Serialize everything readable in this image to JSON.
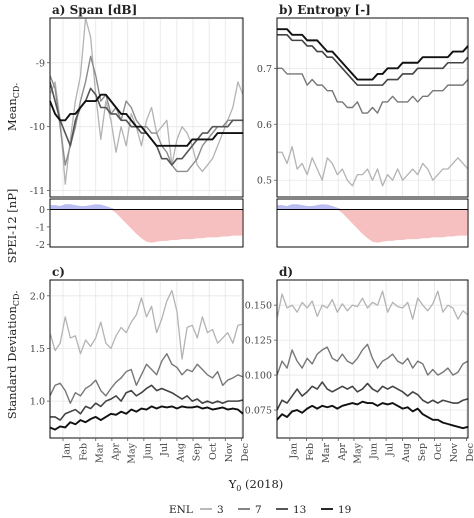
{
  "chart_data": [
    {
      "id": "a",
      "type": "line",
      "title": "a) Span [dB]",
      "ylim": [
        -11.1,
        -8.3
      ],
      "yticks": [
        -11,
        -10,
        -9
      ],
      "ytick_labels": [
        "-11",
        "-10",
        "-9"
      ],
      "grid": true,
      "series": [
        {
          "name": "3",
          "color": "#b3b3b3",
          "width": 1.3,
          "values": [
            -9.5,
            -9.3,
            -9.9,
            -10.9,
            -10.2,
            -9.6,
            -9.2,
            -8.3,
            -8.6,
            -9.5,
            -10.2,
            -9.6,
            -9.9,
            -10.4,
            -10.0,
            -10.3,
            -9.8,
            -10.0,
            -10.3,
            -9.9,
            -9.7,
            -10.1,
            -10.0,
            -9.9,
            -10.6,
            -10.2,
            -10.0,
            -10.1,
            -10.3,
            -10.6,
            -10.7,
            -10.6,
            -10.5,
            -10.3,
            -10.1,
            -9.9,
            -9.7,
            -9.3,
            -9.5
          ]
        },
        {
          "name": "7",
          "color": "#8c8c8c",
          "width": 1.4,
          "values": [
            -9.2,
            -9.4,
            -10.0,
            -10.6,
            -10.3,
            -10.0,
            -9.6,
            -9.3,
            -8.9,
            -9.2,
            -9.6,
            -9.5,
            -9.8,
            -9.7,
            -9.9,
            -9.6,
            -9.7,
            -9.9,
            -10.0,
            -10.0,
            -10.1,
            -10.1,
            -10.3,
            -10.4,
            -10.6,
            -10.7,
            -10.7,
            -10.7,
            -10.6,
            -10.5,
            -10.3,
            -10.2,
            -10.1,
            -10.0,
            -10.0,
            -9.9,
            -9.9,
            -9.9,
            -9.9
          ]
        },
        {
          "name": "13",
          "color": "#555555",
          "width": 1.6,
          "values": [
            -9.3,
            -9.6,
            -9.9,
            -10.1,
            -10.3,
            -9.9,
            -9.7,
            -9.6,
            -9.4,
            -9.5,
            -9.7,
            -9.7,
            -9.8,
            -9.8,
            -9.9,
            -9.9,
            -10.0,
            -10.0,
            -10.1,
            -10.1,
            -10.2,
            -10.3,
            -10.5,
            -10.5,
            -10.6,
            -10.5,
            -10.5,
            -10.4,
            -10.3,
            -10.2,
            -10.1,
            -10.1,
            -10.0,
            -10.0,
            -10.0,
            -10.0,
            -9.9,
            -9.9,
            -9.9
          ]
        },
        {
          "name": "19",
          "color": "#111111",
          "width": 1.9,
          "values": [
            -9.6,
            -9.8,
            -9.9,
            -9.9,
            -9.8,
            -9.8,
            -9.7,
            -9.6,
            -9.6,
            -9.6,
            -9.5,
            -9.5,
            -9.6,
            -9.7,
            -9.8,
            -9.8,
            -9.9,
            -10.0,
            -10.0,
            -10.1,
            -10.2,
            -10.3,
            -10.3,
            -10.3,
            -10.3,
            -10.3,
            -10.3,
            -10.3,
            -10.2,
            -10.2,
            -10.2,
            -10.2,
            -10.2,
            -10.1,
            -10.1,
            -10.1,
            -10.1,
            -10.1,
            -10.1
          ]
        }
      ]
    },
    {
      "id": "b",
      "type": "line",
      "title": "b) Entropy [-]",
      "ylim": [
        0.47,
        0.79
      ],
      "yticks": [
        0.5,
        0.6,
        0.7
      ],
      "ytick_labels": [
        "0.5",
        "0.6",
        "0.7"
      ],
      "grid": true,
      "series": [
        {
          "name": "3",
          "color": "#b3b3b3",
          "width": 1.3,
          "values": [
            0.55,
            0.55,
            0.53,
            0.56,
            0.52,
            0.53,
            0.51,
            0.54,
            0.52,
            0.5,
            0.54,
            0.53,
            0.51,
            0.52,
            0.5,
            0.49,
            0.51,
            0.51,
            0.52,
            0.5,
            0.52,
            0.49,
            0.51,
            0.5,
            0.52,
            0.5,
            0.51,
            0.52,
            0.51,
            0.53,
            0.52,
            0.5,
            0.51,
            0.52,
            0.52,
            0.53,
            0.54,
            0.53,
            0.52
          ]
        },
        {
          "name": "7",
          "color": "#777777",
          "width": 1.4,
          "values": [
            0.7,
            0.7,
            0.69,
            0.69,
            0.69,
            0.69,
            0.67,
            0.68,
            0.67,
            0.67,
            0.66,
            0.66,
            0.64,
            0.64,
            0.63,
            0.63,
            0.64,
            0.62,
            0.62,
            0.63,
            0.62,
            0.64,
            0.64,
            0.65,
            0.64,
            0.64,
            0.64,
            0.65,
            0.64,
            0.65,
            0.65,
            0.66,
            0.66,
            0.66,
            0.67,
            0.67,
            0.67,
            0.67,
            0.68
          ]
        },
        {
          "name": "13",
          "color": "#444444",
          "width": 1.6,
          "values": [
            0.76,
            0.76,
            0.76,
            0.75,
            0.75,
            0.75,
            0.74,
            0.74,
            0.73,
            0.73,
            0.72,
            0.72,
            0.71,
            0.7,
            0.69,
            0.68,
            0.67,
            0.67,
            0.67,
            0.67,
            0.67,
            0.67,
            0.68,
            0.68,
            0.68,
            0.69,
            0.69,
            0.69,
            0.7,
            0.7,
            0.7,
            0.7,
            0.7,
            0.7,
            0.71,
            0.71,
            0.71,
            0.71,
            0.72
          ]
        },
        {
          "name": "19",
          "color": "#111111",
          "width": 1.9,
          "values": [
            0.77,
            0.77,
            0.77,
            0.76,
            0.76,
            0.76,
            0.75,
            0.75,
            0.75,
            0.74,
            0.73,
            0.73,
            0.72,
            0.71,
            0.7,
            0.69,
            0.68,
            0.68,
            0.68,
            0.68,
            0.69,
            0.69,
            0.7,
            0.7,
            0.7,
            0.71,
            0.71,
            0.71,
            0.71,
            0.72,
            0.72,
            0.72,
            0.72,
            0.72,
            0.72,
            0.73,
            0.73,
            0.73,
            0.74
          ]
        }
      ]
    },
    {
      "id": "spei-a",
      "type": "area",
      "ylabel": "SPEI-12 [nP]",
      "ylim": [
        -2.15,
        0.6
      ],
      "yticks": [
        0,
        -1,
        -2
      ],
      "ytick_labels": [
        "0",
        "-1",
        "-2"
      ],
      "positive_color": "#b8bcf0",
      "negative_color": "#f6c0c0",
      "values": [
        0.25,
        0.25,
        0.2,
        0.3,
        0.3,
        0.25,
        0.2,
        0.2,
        0.25,
        0.3,
        0.28,
        0.2,
        0.1,
        -0.2,
        -0.5,
        -0.8,
        -1.1,
        -1.4,
        -1.65,
        -1.85,
        -1.9,
        -1.85,
        -1.8,
        -1.8,
        -1.75,
        -1.75,
        -1.7,
        -1.7,
        -1.7,
        -1.65,
        -1.65,
        -1.6,
        -1.6,
        -1.6,
        -1.55,
        -1.55,
        -1.5,
        -1.5,
        -1.5
      ]
    },
    {
      "id": "spei-b",
      "type": "area",
      "ylim": [
        -2.15,
        0.6
      ],
      "positive_color": "#b8bcf0",
      "negative_color": "#f6c0c0",
      "values": [
        0.25,
        0.25,
        0.2,
        0.3,
        0.3,
        0.25,
        0.2,
        0.2,
        0.25,
        0.3,
        0.28,
        0.2,
        0.1,
        -0.2,
        -0.5,
        -0.8,
        -1.1,
        -1.4,
        -1.65,
        -1.85,
        -1.9,
        -1.85,
        -1.8,
        -1.8,
        -1.75,
        -1.75,
        -1.7,
        -1.7,
        -1.7,
        -1.65,
        -1.65,
        -1.6,
        -1.6,
        -1.6,
        -1.55,
        -1.55,
        -1.5,
        -1.5,
        -1.5
      ]
    },
    {
      "id": "c",
      "type": "line",
      "title": "c)",
      "ylim": [
        0.65,
        2.15
      ],
      "yticks": [
        1.0,
        1.5,
        2.0
      ],
      "ytick_labels": [
        "1.0",
        "1.5",
        "2.0"
      ],
      "grid": true,
      "series": [
        {
          "name": "3",
          "color": "#b3b3b3",
          "width": 1.3,
          "values": [
            1.65,
            1.48,
            1.55,
            1.8,
            1.6,
            1.62,
            1.45,
            1.58,
            1.52,
            1.6,
            1.75,
            1.55,
            1.5,
            1.62,
            1.7,
            1.65,
            1.75,
            1.82,
            1.98,
            1.8,
            1.9,
            1.65,
            1.78,
            1.95,
            2.05,
            1.85,
            1.4,
            1.7,
            1.72,
            1.6,
            1.8,
            1.65,
            1.68,
            1.55,
            1.6,
            1.65,
            1.55,
            1.72,
            1.73
          ]
        },
        {
          "name": "7",
          "color": "#777777",
          "width": 1.4,
          "values": [
            1.05,
            1.15,
            1.17,
            1.1,
            0.98,
            1.08,
            1.05,
            1.12,
            1.15,
            1.2,
            1.1,
            1.05,
            1.12,
            1.18,
            1.22,
            1.28,
            1.3,
            1.15,
            1.25,
            1.35,
            1.3,
            1.25,
            1.38,
            1.45,
            1.35,
            1.32,
            1.25,
            1.3,
            1.28,
            1.35,
            1.3,
            1.25,
            1.22,
            1.28,
            1.15,
            1.2,
            1.22,
            1.25,
            1.23
          ]
        },
        {
          "name": "13",
          "color": "#444444",
          "width": 1.6,
          "values": [
            0.85,
            0.85,
            0.82,
            0.88,
            0.9,
            0.92,
            0.88,
            0.95,
            0.93,
            0.98,
            0.95,
            1.0,
            1.02,
            1.05,
            1.0,
            1.08,
            1.1,
            1.05,
            1.08,
            1.12,
            1.15,
            1.1,
            1.12,
            1.1,
            1.08,
            1.05,
            1.02,
            1.05,
            1.0,
            1.02,
            0.98,
            1.0,
            0.98,
            1.0,
            0.98,
            1.0,
            1.0,
            1.0,
            1.01
          ]
        },
        {
          "name": "19",
          "color": "#111111",
          "width": 1.9,
          "values": [
            0.75,
            0.73,
            0.76,
            0.75,
            0.8,
            0.78,
            0.82,
            0.8,
            0.83,
            0.85,
            0.82,
            0.85,
            0.88,
            0.87,
            0.9,
            0.88,
            0.92,
            0.9,
            0.93,
            0.92,
            0.95,
            0.93,
            0.95,
            0.94,
            0.95,
            0.93,
            0.95,
            0.94,
            0.94,
            0.95,
            0.93,
            0.94,
            0.92,
            0.93,
            0.94,
            0.92,
            0.93,
            0.92,
            0.88
          ]
        }
      ]
    },
    {
      "id": "d",
      "type": "line",
      "title": "d)",
      "ylim": [
        0.055,
        0.168
      ],
      "yticks": [
        0.075,
        0.1,
        0.125,
        0.15
      ],
      "ytick_labels": [
        "0.075",
        "0.100",
        "0.125",
        "0.150"
      ],
      "grid": true,
      "series": [
        {
          "name": "3",
          "color": "#b3b3b3",
          "width": 1.3,
          "values": [
            0.14,
            0.158,
            0.148,
            0.15,
            0.145,
            0.152,
            0.148,
            0.153,
            0.142,
            0.15,
            0.148,
            0.154,
            0.145,
            0.151,
            0.146,
            0.15,
            0.149,
            0.155,
            0.148,
            0.152,
            0.15,
            0.16,
            0.145,
            0.152,
            0.149,
            0.148,
            0.152,
            0.14,
            0.155,
            0.15,
            0.146,
            0.151,
            0.16,
            0.145,
            0.15,
            0.148,
            0.14,
            0.146,
            0.143
          ]
        },
        {
          "name": "7",
          "color": "#777777",
          "width": 1.4,
          "values": [
            0.1,
            0.11,
            0.105,
            0.118,
            0.11,
            0.105,
            0.112,
            0.108,
            0.115,
            0.118,
            0.12,
            0.112,
            0.11,
            0.115,
            0.11,
            0.108,
            0.112,
            0.118,
            0.122,
            0.112,
            0.105,
            0.11,
            0.112,
            0.115,
            0.11,
            0.108,
            0.112,
            0.105,
            0.11,
            0.108,
            0.1,
            0.104,
            0.1,
            0.102,
            0.105,
            0.1,
            0.102,
            0.108,
            0.11
          ]
        },
        {
          "name": "13",
          "color": "#444444",
          "width": 1.6,
          "values": [
            0.075,
            0.082,
            0.08,
            0.085,
            0.09,
            0.085,
            0.088,
            0.092,
            0.09,
            0.095,
            0.09,
            0.088,
            0.09,
            0.092,
            0.09,
            0.092,
            0.088,
            0.09,
            0.094,
            0.09,
            0.088,
            0.092,
            0.09,
            0.092,
            0.09,
            0.088,
            0.085,
            0.088,
            0.086,
            0.082,
            0.08,
            0.082,
            0.08,
            0.082,
            0.081,
            0.08,
            0.08,
            0.082,
            0.083
          ]
        },
        {
          "name": "19",
          "color": "#111111",
          "width": 1.9,
          "values": [
            0.068,
            0.072,
            0.07,
            0.074,
            0.075,
            0.073,
            0.076,
            0.078,
            0.076,
            0.078,
            0.077,
            0.078,
            0.076,
            0.078,
            0.079,
            0.08,
            0.079,
            0.081,
            0.08,
            0.08,
            0.078,
            0.08,
            0.079,
            0.08,
            0.078,
            0.076,
            0.077,
            0.074,
            0.076,
            0.072,
            0.07,
            0.068,
            0.068,
            0.066,
            0.065,
            0.064,
            0.063,
            0.062,
            0.063
          ]
        }
      ]
    },
    {
      "id": "spei-c",
      "type": "area",
      "ylim": [
        0,
        1
      ],
      "values": []
    }
  ],
  "xaxis": {
    "months": [
      "Jan",
      "Feb",
      "Mar",
      "Apr",
      "May",
      "Jun",
      "Jul",
      "Aug",
      "Sep",
      "Oct",
      "Nov",
      "Dec"
    ],
    "label": "Y",
    "label_sub": "0",
    "label_suffix": " (2018)"
  },
  "ylabels": {
    "mean": "Mean",
    "mean_sub": "CD-",
    "spei": "SPEI-12 [nP]",
    "sd": "Standard Deviation",
    "sd_sub": "CD-"
  },
  "legend": {
    "title": "ENL",
    "items": [
      {
        "label": "3",
        "color": "#b3b3b3"
      },
      {
        "label": "7",
        "color": "#777777"
      },
      {
        "label": "13",
        "color": "#444444"
      },
      {
        "label": "19",
        "color": "#111111"
      }
    ]
  }
}
